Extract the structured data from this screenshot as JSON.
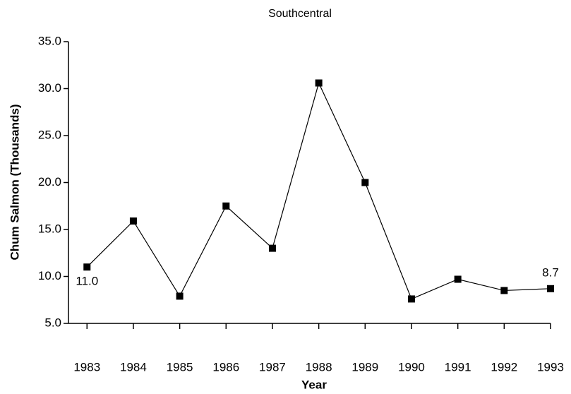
{
  "chart_data": {
    "type": "line",
    "title": "Southcentral",
    "xlabel": "Year",
    "ylabel": "Chum Salmon (Thousands)",
    "x": [
      1983,
      1984,
      1985,
      1986,
      1987,
      1988,
      1989,
      1990,
      1991,
      1992,
      1993
    ],
    "series": [
      {
        "name": "Southcentral",
        "color": "#000000",
        "values": [
          11.0,
          15.9,
          7.9,
          17.5,
          13.0,
          30.6,
          20.0,
          7.6,
          9.7,
          8.5,
          8.7
        ],
        "value_labels": [
          "11.0",
          null,
          null,
          null,
          null,
          null,
          null,
          null,
          null,
          null,
          "8.7"
        ]
      }
    ],
    "xlim": [
      1982.6,
      1993
    ],
    "xticks": [
      1983,
      1984,
      1985,
      1986,
      1987,
      1988,
      1989,
      1990,
      1991,
      1992,
      1993
    ],
    "ylim": [
      5,
      35
    ],
    "yticks": [
      {
        "value": 5,
        "label": "5.0"
      },
      {
        "value": 10,
        "label": "10.0"
      },
      {
        "value": 15,
        "label": "15.0"
      },
      {
        "value": 20,
        "label": "20.0"
      },
      {
        "value": 25,
        "label": "25.0"
      },
      {
        "value": 30,
        "label": "30.0"
      },
      {
        "value": 35,
        "label": "35.0"
      }
    ],
    "grid": false
  }
}
